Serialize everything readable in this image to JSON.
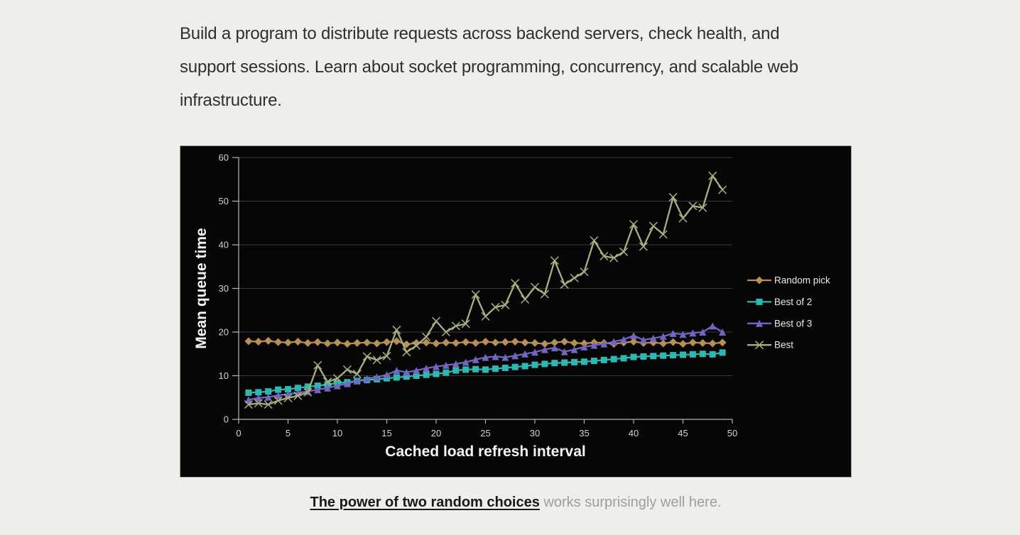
{
  "page": {
    "background_color": "#edefe8",
    "intro_paragraph": "Build a program to distribute requests across backend servers, check health, and support sessions. Learn about socket programming, concurrency, and scalable web infrastructure.",
    "caption": {
      "link_text": "The power of two random choices",
      "rest_text": " works surprisingly well here."
    }
  },
  "chart_data": {
    "type": "line",
    "title": "",
    "xlabel": "Cached load refresh interval",
    "ylabel": "Mean queue time",
    "xlim": [
      0,
      50
    ],
    "ylim": [
      0,
      60
    ],
    "x_ticks": [
      0,
      5,
      10,
      15,
      20,
      25,
      30,
      35,
      40,
      45,
      50
    ],
    "y_ticks": [
      0,
      10,
      20,
      30,
      40,
      50,
      60
    ],
    "grid": "horizontal",
    "legend_position": "right",
    "plot_background": "#060606",
    "grid_color": "#3a3a3a",
    "axis_color": "#b5b5b5",
    "tick_label_color": "#d2d2d2",
    "axis_title_color": "#f4f4f4",
    "legend_text_color": "#e9e9e9",
    "x": [
      1,
      2,
      3,
      4,
      5,
      6,
      7,
      8,
      9,
      10,
      11,
      12,
      13,
      14,
      15,
      16,
      17,
      18,
      19,
      20,
      21,
      22,
      23,
      24,
      25,
      26,
      27,
      28,
      29,
      30,
      31,
      32,
      33,
      34,
      35,
      36,
      37,
      38,
      39,
      40,
      41,
      42,
      43,
      44,
      45,
      46,
      47,
      48,
      49
    ],
    "series": [
      {
        "name": "Random pick",
        "color": "#b88f55",
        "marker": "diamond",
        "values": [
          17.9,
          17.8,
          18.0,
          17.7,
          17.6,
          17.8,
          17.5,
          17.7,
          17.4,
          17.6,
          17.3,
          17.5,
          17.6,
          17.4,
          17.7,
          17.9,
          17.2,
          17.5,
          17.6,
          17.4,
          17.6,
          17.5,
          17.7,
          17.5,
          17.8,
          17.6,
          17.7,
          17.8,
          17.6,
          17.5,
          17.3,
          17.6,
          17.8,
          17.5,
          17.4,
          17.6,
          17.5,
          17.3,
          17.6,
          17.8,
          17.5,
          17.6,
          17.4,
          17.7,
          17.3,
          17.6,
          17.5,
          17.4,
          17.6
        ]
      },
      {
        "name": "Best of 2",
        "color": "#2eb8b2",
        "marker": "square",
        "values": [
          6.1,
          6.2,
          6.4,
          6.8,
          6.9,
          7.2,
          7.5,
          7.7,
          8.0,
          8.3,
          8.5,
          8.8,
          9.0,
          9.2,
          9.4,
          9.6,
          9.8,
          10.0,
          10.2,
          10.4,
          10.7,
          11.2,
          11.4,
          11.5,
          11.4,
          11.6,
          11.8,
          12.0,
          12.2,
          12.5,
          12.7,
          12.9,
          13.0,
          13.1,
          13.2,
          13.4,
          13.6,
          13.8,
          14.0,
          14.3,
          14.4,
          14.5,
          14.6,
          14.7,
          14.8,
          14.9,
          15.0,
          14.9,
          15.3
        ]
      },
      {
        "name": "Best of 3",
        "color": "#7365c2",
        "marker": "triangle",
        "values": [
          4.5,
          4.9,
          5.1,
          5.5,
          5.8,
          6.1,
          6.4,
          6.8,
          7.2,
          7.7,
          8.2,
          8.8,
          9.3,
          9.7,
          10.2,
          11.2,
          10.8,
          11.2,
          11.7,
          12.1,
          12.4,
          12.7,
          13.1,
          13.7,
          14.2,
          14.4,
          14.2,
          14.6,
          15.0,
          15.4,
          16.0,
          16.4,
          15.5,
          16.0,
          16.6,
          17.0,
          17.3,
          17.8,
          18.3,
          19.2,
          18.2,
          18.6,
          19.0,
          19.7,
          19.5,
          19.8,
          20.0,
          21.4,
          20.0
        ]
      },
      {
        "name": "Best",
        "color": "#abae81",
        "marker": "x",
        "values": [
          3.4,
          3.7,
          3.4,
          4.3,
          4.9,
          5.4,
          6.2,
          12.4,
          8.6,
          9.4,
          11.4,
          10.4,
          14.4,
          13.6,
          14.5,
          20.5,
          15.4,
          16.9,
          18.9,
          22.5,
          20.0,
          21.4,
          21.9,
          28.6,
          23.6,
          25.7,
          26.2,
          31.2,
          27.5,
          30.3,
          28.7,
          36.4,
          30.9,
          32.4,
          33.8,
          41.0,
          37.4,
          37.0,
          38.4,
          44.7,
          39.6,
          44.3,
          42.4,
          50.9,
          46.1,
          48.9,
          48.5,
          55.8,
          52.6
        ]
      }
    ]
  }
}
